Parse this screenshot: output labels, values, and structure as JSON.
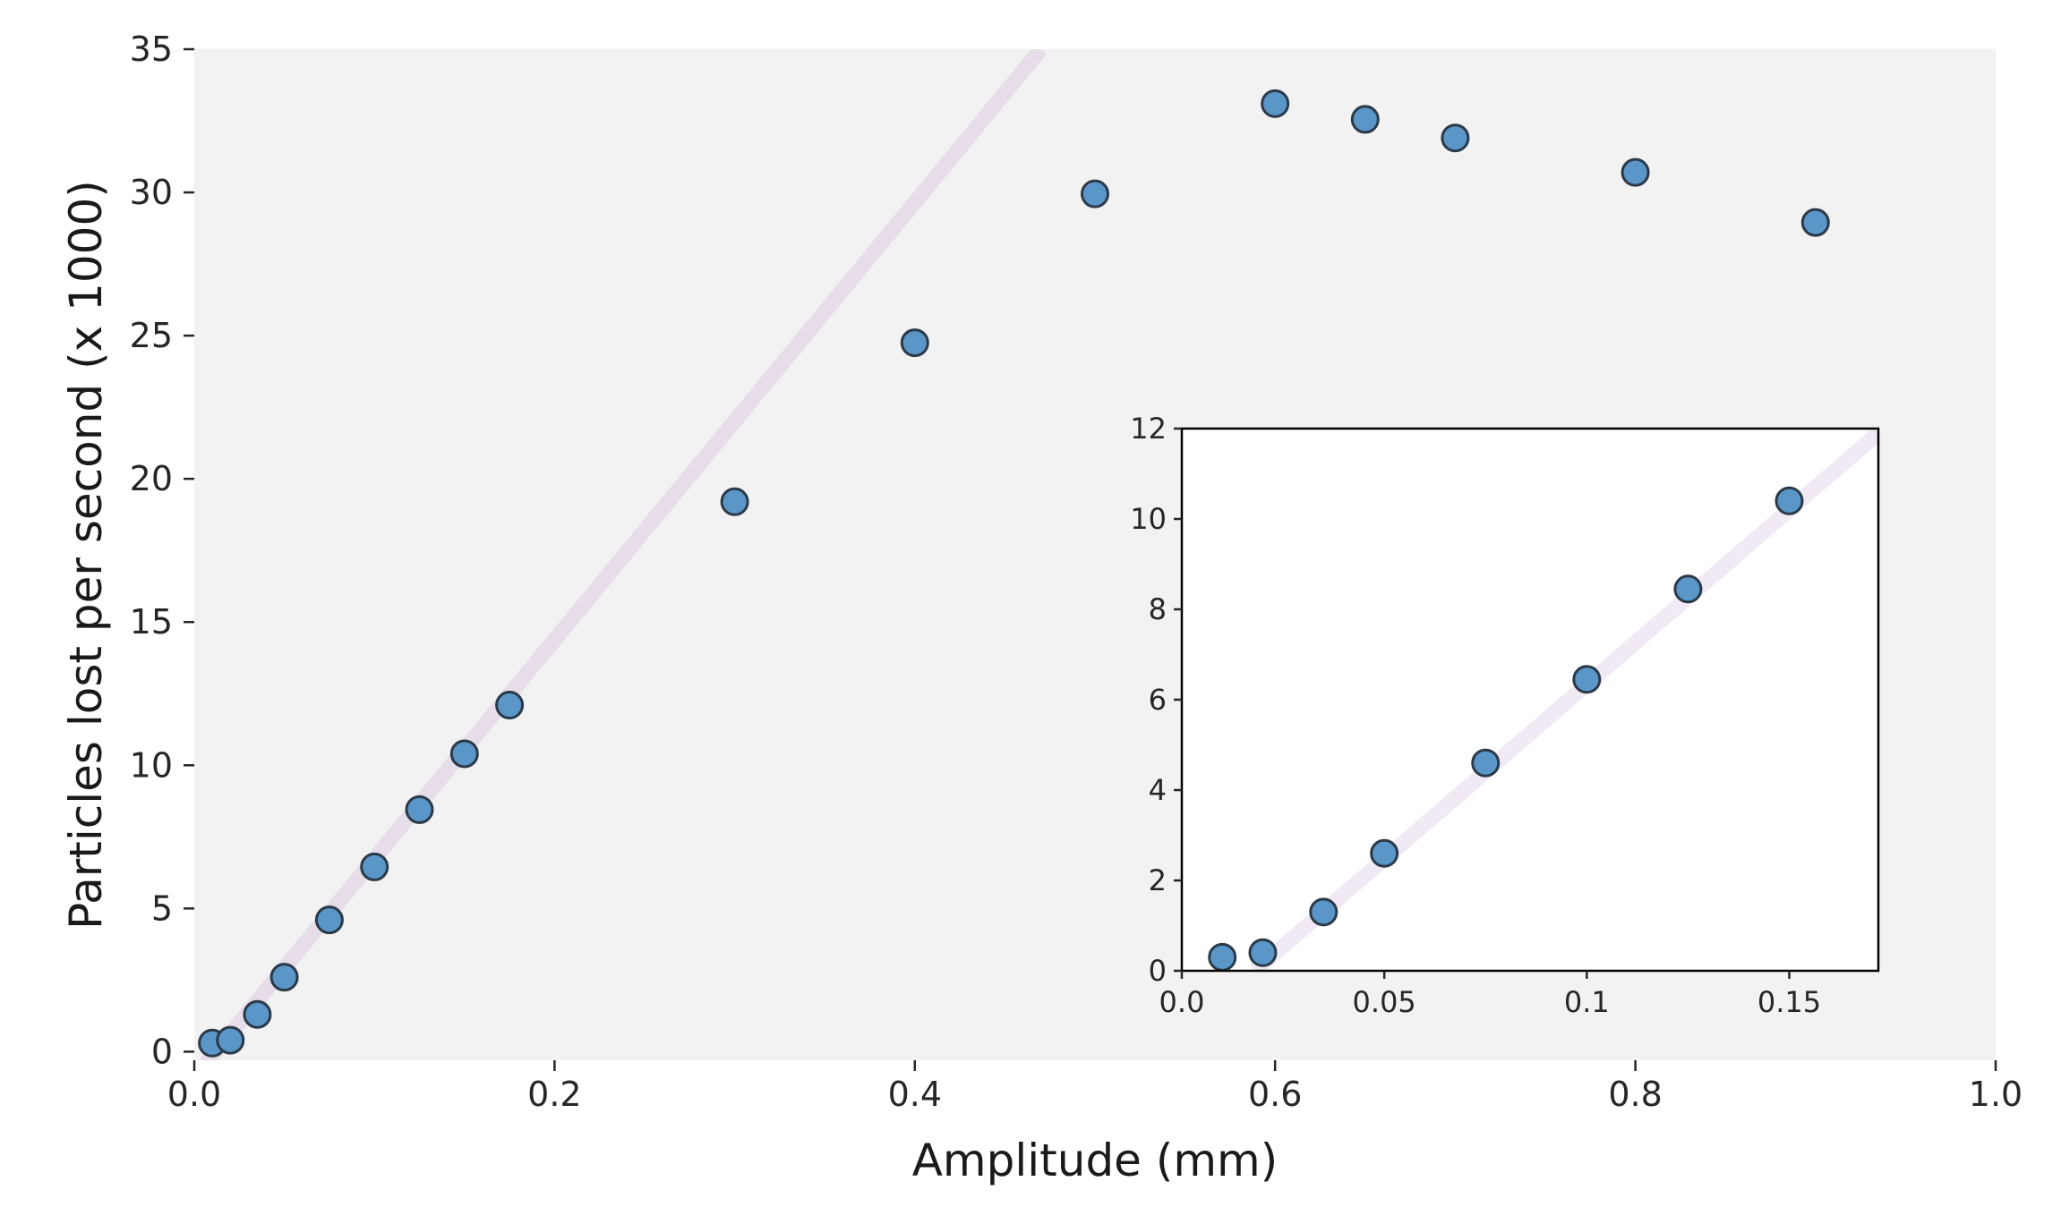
{
  "chart_data": [
    {
      "id": "main",
      "type": "scatter",
      "title": "",
      "xlabel": "Amplitude (mm)",
      "ylabel": "Particles lost per second (x 1000)",
      "xlim": [
        0,
        1
      ],
      "ylim": [
        -0.3,
        35
      ],
      "xticks": [
        0,
        0.2,
        0.4,
        0.6,
        0.8,
        1.0
      ],
      "xtick_labels": [
        "0.0",
        "0.2",
        "0.4",
        "0.6",
        "0.8",
        "1.0"
      ],
      "yticks": [
        0,
        5,
        10,
        15,
        20,
        25,
        30,
        35
      ],
      "ytick_labels": [
        "0",
        "5",
        "10",
        "15",
        "20",
        "25",
        "30",
        "35"
      ],
      "background": "#f2f2f2",
      "grid": false,
      "legend": "none",
      "series": [
        {
          "type": "scatter",
          "color": "#5b96c8",
          "edge_color": "#2b3a48",
          "points": [
            {
              "x": 0.01,
              "y": 0.3
            },
            {
              "x": 0.02,
              "y": 0.4
            },
            {
              "x": 0.035,
              "y": 1.3
            },
            {
              "x": 0.05,
              "y": 2.6
            },
            {
              "x": 0.075,
              "y": 4.6
            },
            {
              "x": 0.1,
              "y": 6.45
            },
            {
              "x": 0.125,
              "y": 8.45
            },
            {
              "x": 0.15,
              "y": 10.4
            },
            {
              "x": 0.175,
              "y": 12.1
            },
            {
              "x": 0.3,
              "y": 19.2
            },
            {
              "x": 0.4,
              "y": 24.75
            },
            {
              "x": 0.5,
              "y": 29.95
            },
            {
              "x": 0.6,
              "y": 33.1
            },
            {
              "x": 0.65,
              "y": 32.55
            },
            {
              "x": 0.7,
              "y": 31.9
            },
            {
              "x": 0.8,
              "y": 30.7
            },
            {
              "x": 0.9,
              "y": 28.95
            }
          ]
        },
        {
          "type": "line",
          "color": "#e6dde9",
          "points": [
            {
              "x": 0.0,
              "y": -0.9
            },
            {
              "x": 0.47,
              "y": 35
            }
          ]
        }
      ]
    },
    {
      "id": "inset",
      "type": "scatter",
      "title": "",
      "xlabel": "",
      "ylabel": "",
      "xlim": [
        0,
        0.172
      ],
      "ylim": [
        0,
        12
      ],
      "xticks": [
        0,
        0.05,
        0.1,
        0.15
      ],
      "xtick_labels": [
        "0.0",
        "0.05",
        "0.1",
        "0.15"
      ],
      "yticks": [
        0,
        2,
        4,
        6,
        8,
        10,
        12
      ],
      "ytick_labels": [
        "0",
        "2",
        "4",
        "6",
        "8",
        "10",
        "12"
      ],
      "background": "#ffffff",
      "grid": false,
      "legend": "none",
      "series": [
        {
          "type": "scatter",
          "color": "#5b96c8",
          "edge_color": "#2b3a48",
          "points": [
            {
              "x": 0.01,
              "y": 0.3
            },
            {
              "x": 0.02,
              "y": 0.4
            },
            {
              "x": 0.035,
              "y": 1.3
            },
            {
              "x": 0.05,
              "y": 2.6
            },
            {
              "x": 0.075,
              "y": 4.6
            },
            {
              "x": 0.1,
              "y": 6.45
            },
            {
              "x": 0.125,
              "y": 8.45
            },
            {
              "x": 0.15,
              "y": 10.4
            }
          ]
        },
        {
          "type": "line",
          "color": "#f1e9f4",
          "points": [
            {
              "x": 0.018,
              "y": 0.0
            },
            {
              "x": 0.172,
              "y": 11.9
            }
          ]
        }
      ]
    }
  ]
}
